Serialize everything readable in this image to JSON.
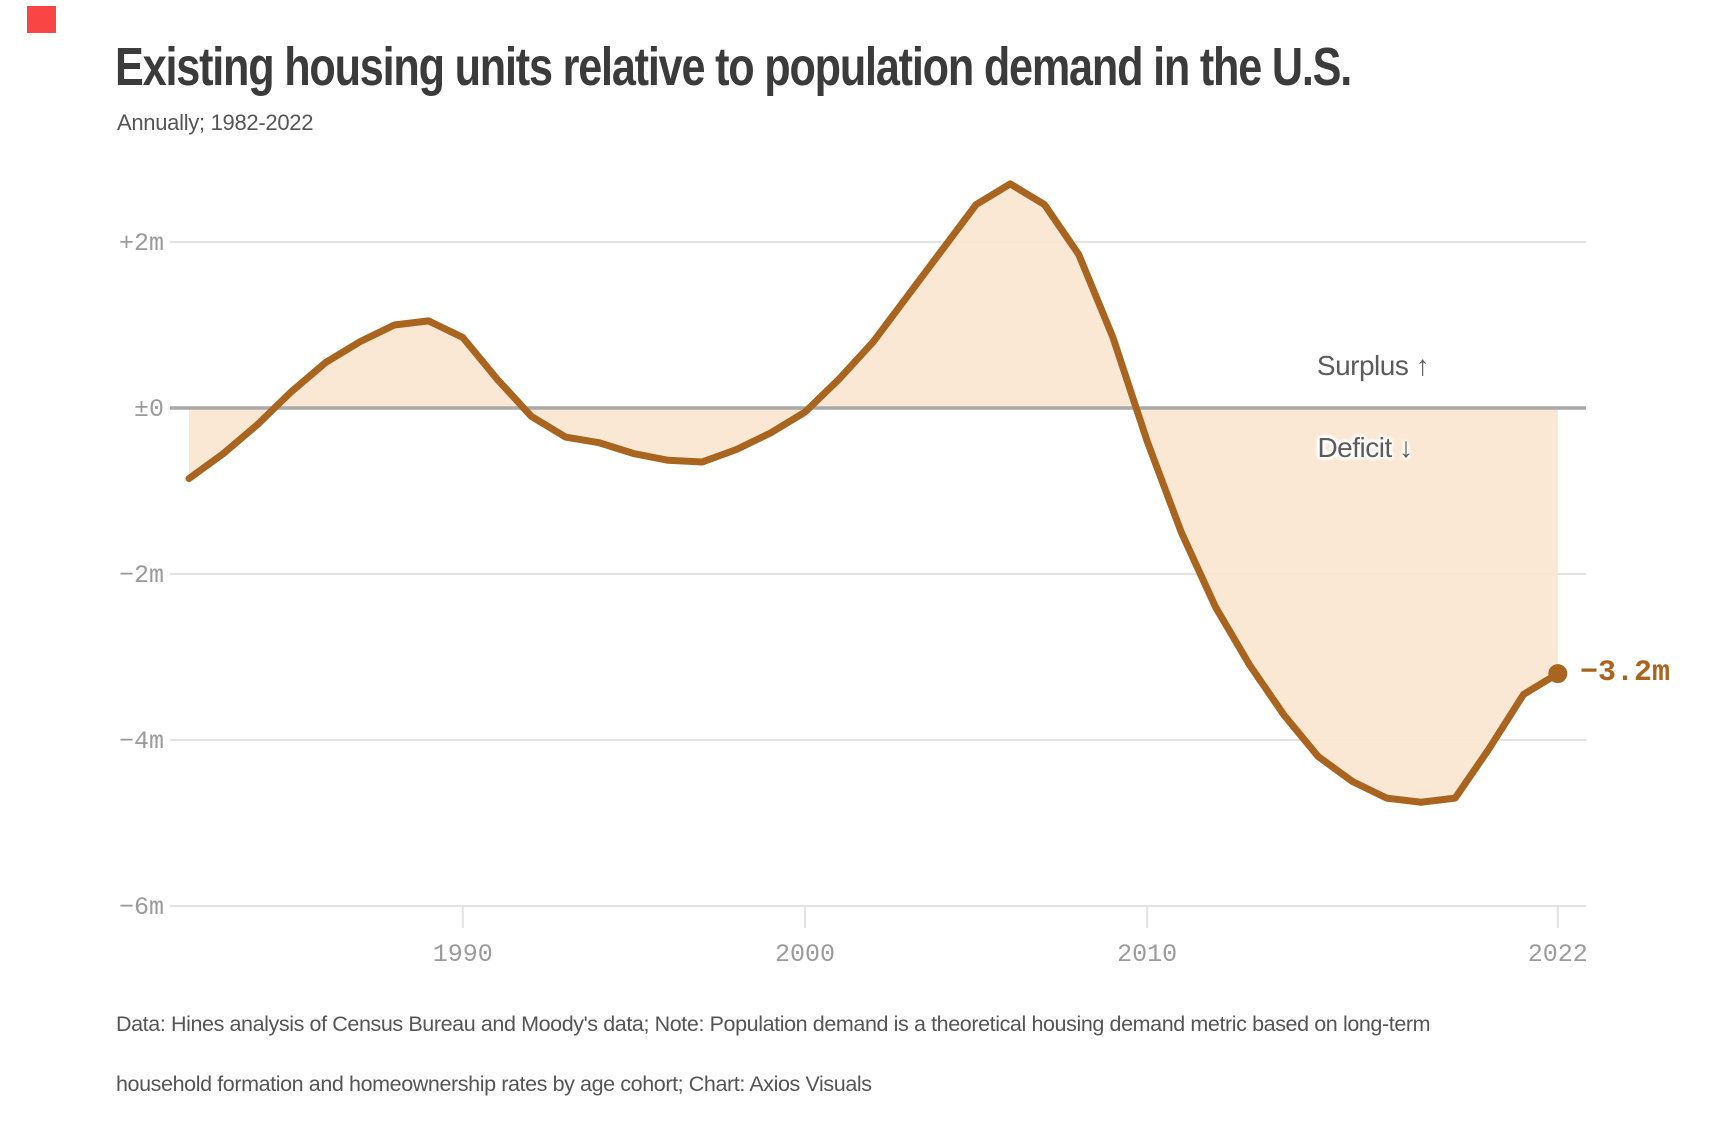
{
  "brand": {
    "accent_square_color": "#f94545"
  },
  "header": {
    "title": "Existing housing units relative to population demand in the U.S.",
    "subtitle": "Annually; 1982-2022"
  },
  "chart_data": {
    "type": "area",
    "title": "Existing housing units relative to population demand in the U.S.",
    "subtitle": "Annually; 1982-2022",
    "unit": "millions of housing units",
    "x": [
      1982,
      1983,
      1984,
      1985,
      1986,
      1987,
      1988,
      1989,
      1990,
      1991,
      1992,
      1993,
      1994,
      1995,
      1996,
      1997,
      1998,
      1999,
      2000,
      2001,
      2002,
      2003,
      2004,
      2005,
      2006,
      2007,
      2008,
      2009,
      2010,
      2011,
      2012,
      2013,
      2014,
      2015,
      2016,
      2017,
      2018,
      2019,
      2020,
      2021,
      2022
    ],
    "values": [
      -0.85,
      -0.55,
      -0.2,
      0.2,
      0.55,
      0.8,
      1.0,
      1.05,
      0.85,
      0.35,
      -0.1,
      -0.35,
      -0.42,
      -0.55,
      -0.63,
      -0.65,
      -0.5,
      -0.3,
      -0.05,
      0.35,
      0.8,
      1.35,
      1.9,
      2.45,
      2.7,
      2.45,
      1.85,
      0.85,
      -0.4,
      -1.5,
      -2.4,
      -3.1,
      -3.7,
      -4.2,
      -4.5,
      -4.7,
      -4.75,
      -4.7,
      -4.1,
      -3.45,
      -3.2
    ],
    "xlim": [
      1982,
      2022
    ],
    "ylim": [
      -6.6,
      3.0
    ],
    "grid": true,
    "yticks": [
      {
        "value": 2,
        "label": "+2m"
      },
      {
        "value": 0,
        "label": "±0"
      },
      {
        "value": -2,
        "label": "−2m"
      },
      {
        "value": -4,
        "label": "−4m"
      },
      {
        "value": -6,
        "label": "−6m"
      }
    ],
    "xticks": [
      {
        "value": 1990,
        "label": "1990"
      },
      {
        "value": 2000,
        "label": "2000"
      },
      {
        "value": 2010,
        "label": "2010"
      },
      {
        "value": 2022,
        "label": "2022"
      }
    ],
    "annotations": {
      "surplus": "Surplus ↑",
      "deficit": "Deficit ↓",
      "last_point_label": "−3.2m"
    },
    "colors": {
      "line": "#a9651f",
      "fill": "#f9e5cf",
      "zero_line": "#a9a9a9",
      "gridline": "#e3e3e3",
      "axis_text": "#9b9b9b",
      "annotation_text": "#5c5c5c"
    }
  },
  "footer": {
    "line1": "Data: Hines analysis of Census Bureau and Moody's data; Note: Population demand is a theoretical housing demand metric based on long-term",
    "line2": "household formation and homeownership rates by age cohort; Chart: Axios Visuals"
  }
}
